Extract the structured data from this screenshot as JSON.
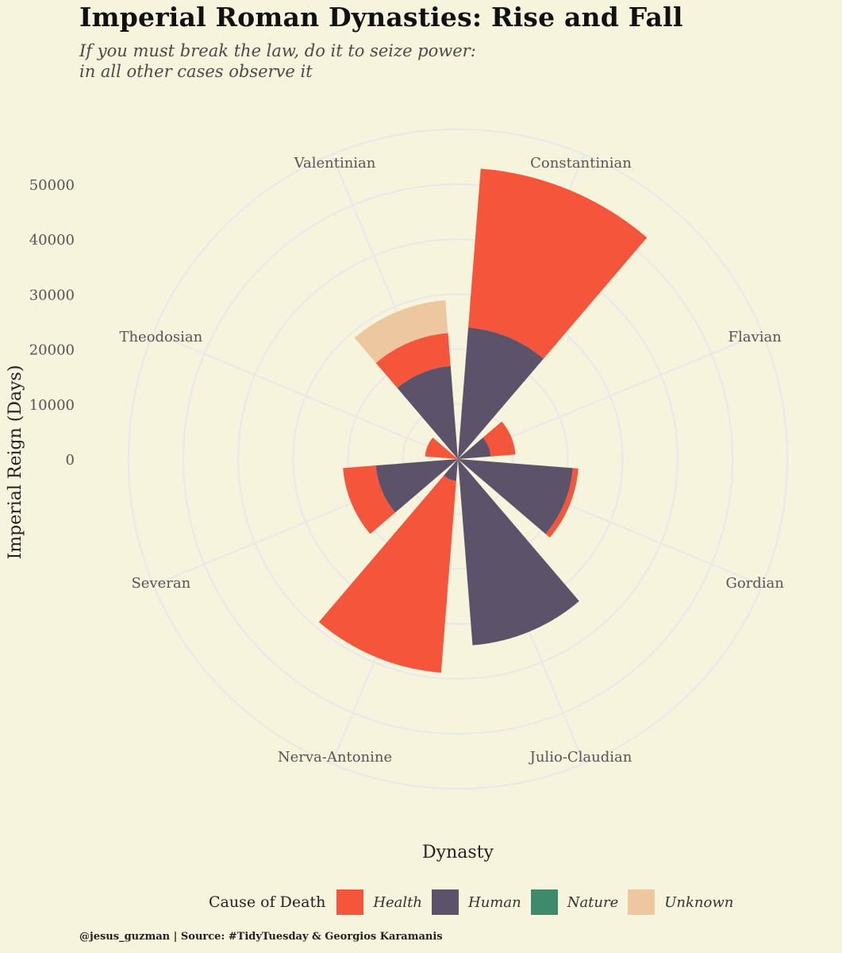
{
  "title": "Imperial Roman Dynasties: Rise and Fall",
  "subtitle_lines": [
    "If you must break the law, do it to seize power:",
    "in all other cases observe it"
  ],
  "caption": "@jesus_guzman | Source: #TidyTuesday & Georgios Karamanis",
  "legend": {
    "title": "Cause of Death",
    "items": [
      {
        "label": "Health",
        "color": "#f4553b"
      },
      {
        "label": "Human",
        "color": "#5c5269"
      },
      {
        "label": "Nature",
        "color": "#3d8a6c"
      },
      {
        "label": "Unknown",
        "color": "#ecc7a0"
      }
    ]
  },
  "chart_data": {
    "type": "bar",
    "coord": "polar",
    "title": "Imperial Roman Dynasties: Rise and Fall",
    "xlabel": "Dynasty",
    "ylabel": "Imperial Reign (Days)",
    "yticks": [
      0,
      10000,
      20000,
      30000,
      40000,
      50000
    ],
    "ylim": [
      0,
      60000
    ],
    "grid": true,
    "legend_position": "bottom",
    "categories": [
      "Constantinian",
      "Flavian",
      "Gordian",
      "Julio-Claudian",
      "Nerva-Antonine",
      "Severan",
      "Theodosian",
      "Valentinian"
    ],
    "series": [
      {
        "name": "Human",
        "color": "#5c5269",
        "values": [
          24000,
          6000,
          21000,
          34000,
          4000,
          15000,
          0,
          17000
        ]
      },
      {
        "name": "Health",
        "color": "#f4553b",
        "values": [
          29000,
          4500,
          1000,
          0,
          35000,
          6000,
          6000,
          6000
        ]
      },
      {
        "name": "Nature",
        "color": "#3d8a6c",
        "values": [
          0,
          0,
          0,
          0,
          0,
          0,
          0,
          0
        ]
      },
      {
        "name": "Unknown",
        "color": "#ecc7a0",
        "values": [
          0,
          0,
          0,
          0,
          0,
          0,
          0,
          6000
        ]
      }
    ]
  }
}
